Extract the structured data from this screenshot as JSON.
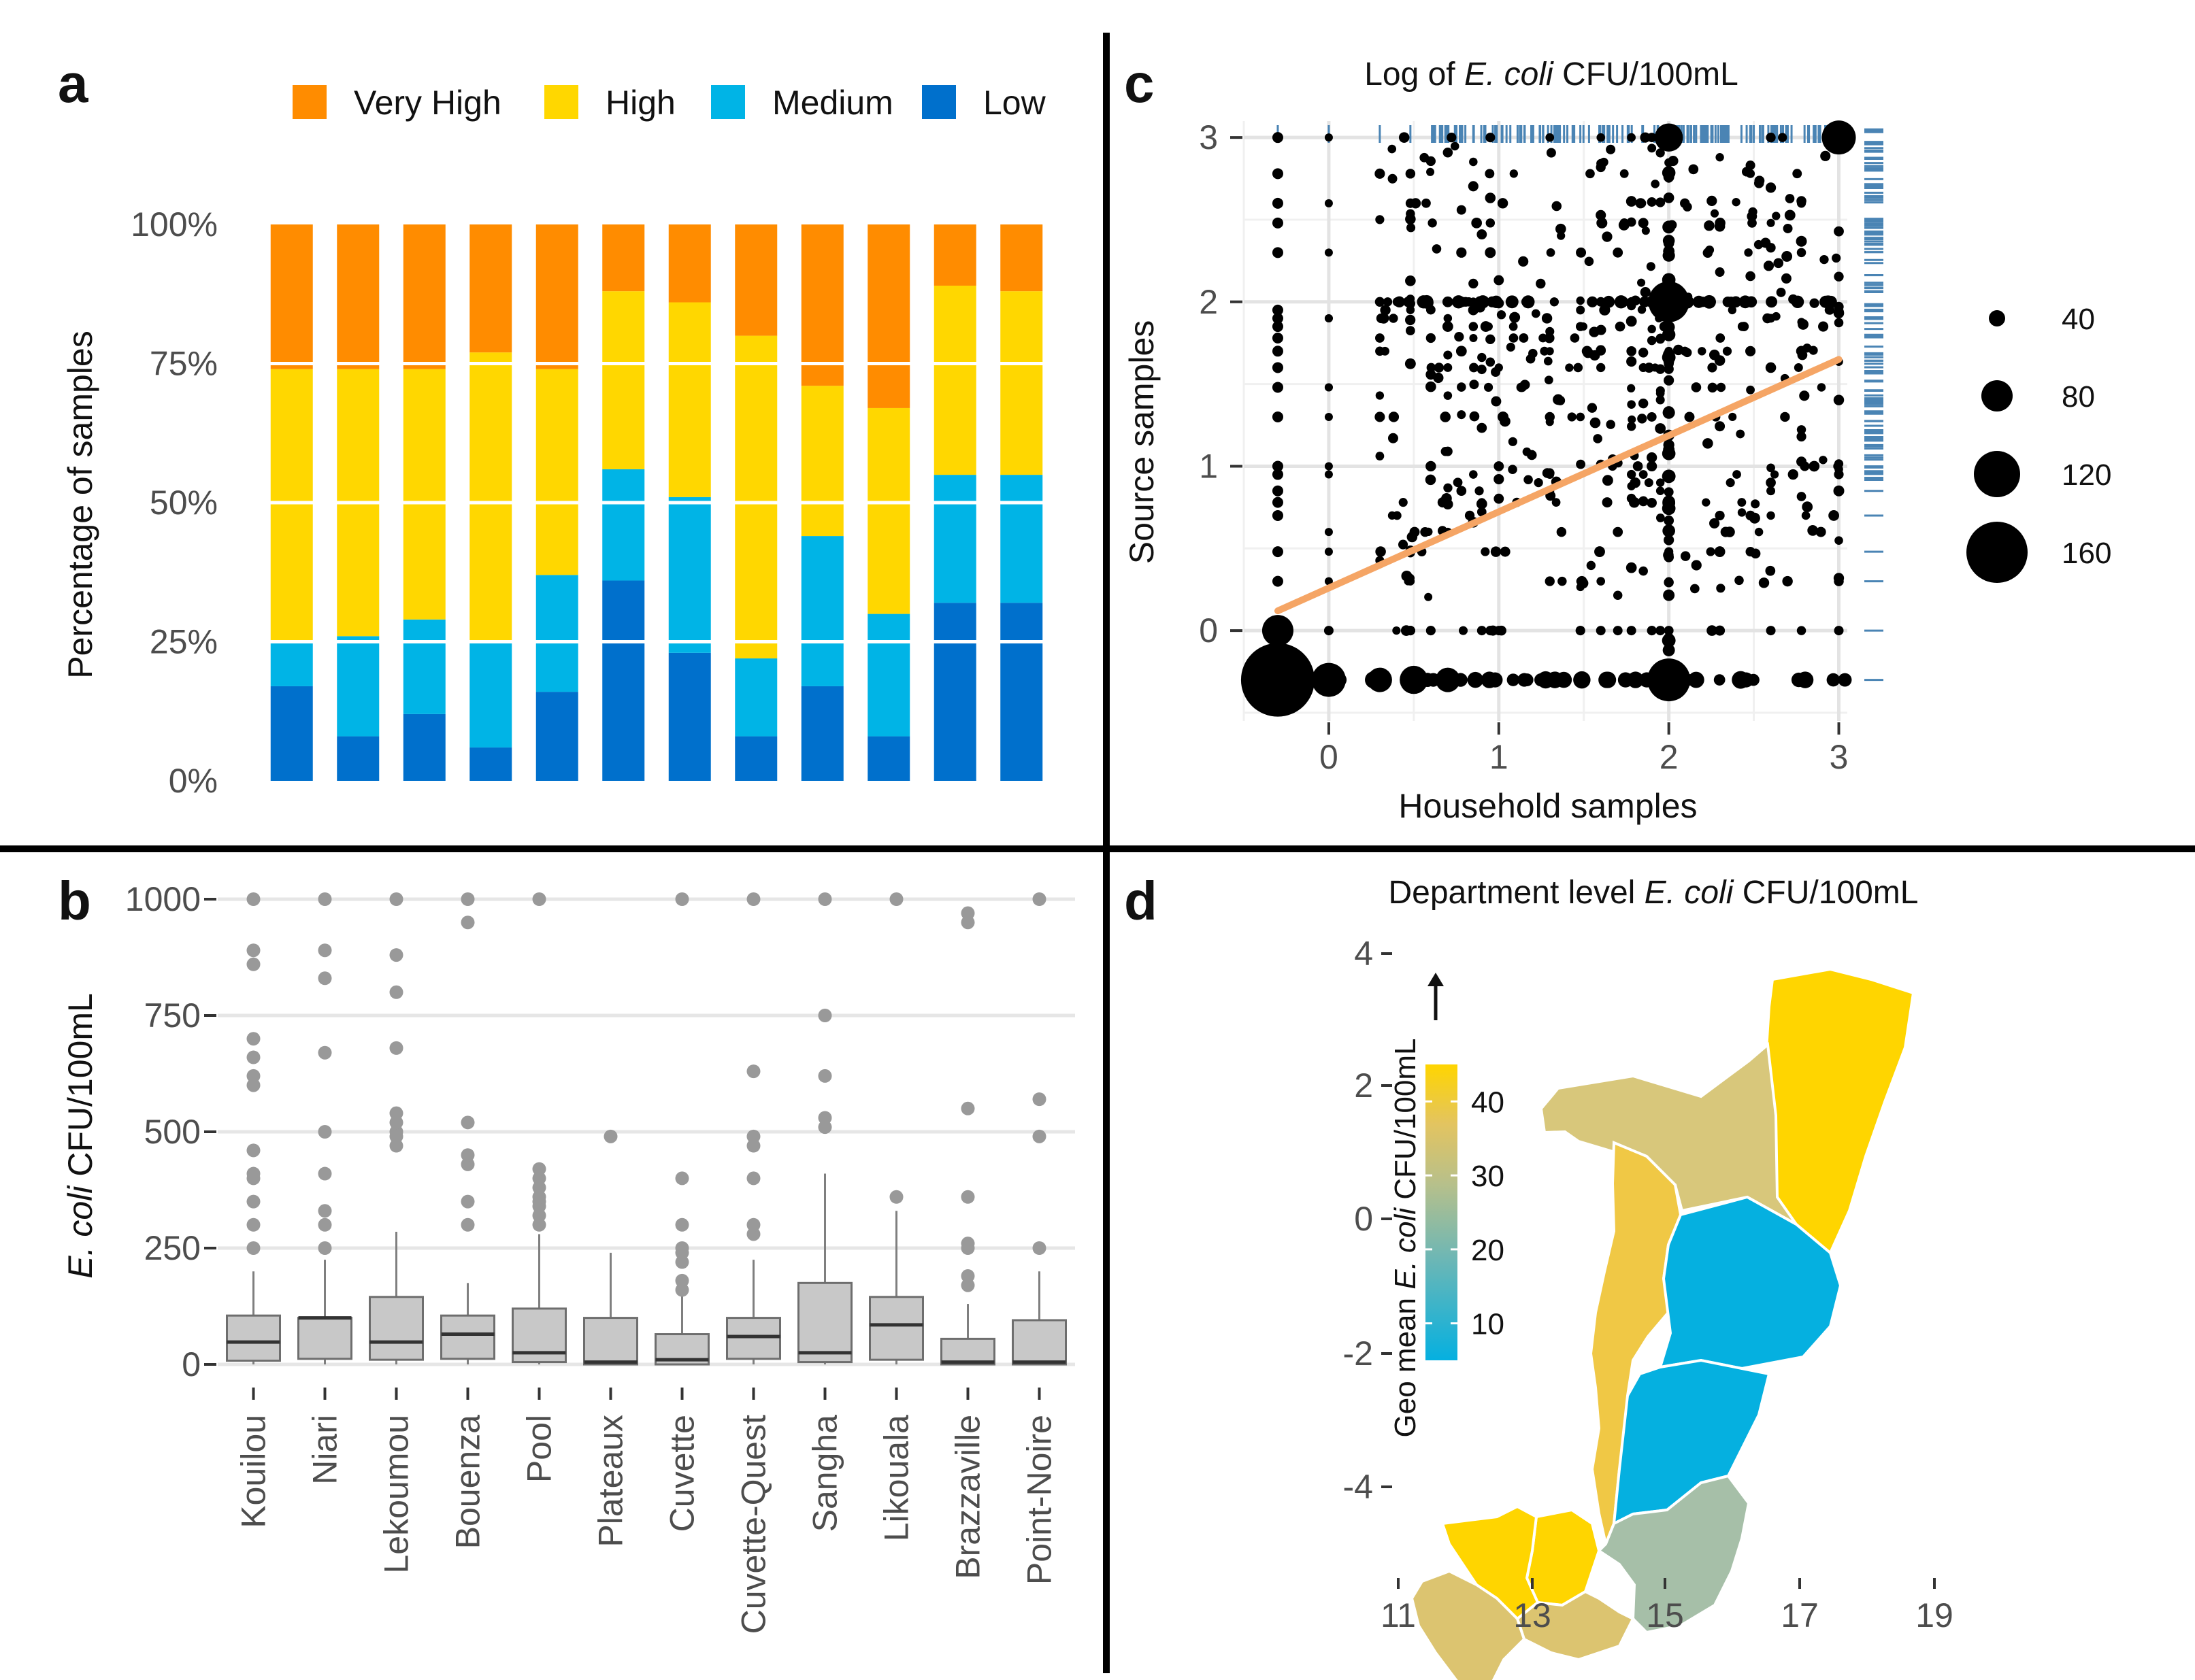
{
  "colors": {
    "very_high": "#FF8C00",
    "high": "#FFD700",
    "medium": "#00B4E6",
    "low": "#0070CC",
    "gray_box": "#C8C8C8",
    "outlier": "#999999",
    "fit_line": "#F5A565",
    "rug": "#4A84B4"
  },
  "panels": {
    "a": {
      "letter": "a"
    },
    "b": {
      "letter": "b"
    },
    "c": {
      "letter": "c"
    },
    "d": {
      "letter": "d"
    }
  },
  "chart_data": [
    {
      "panel": "a",
      "type": "bar",
      "stacked": true,
      "ylabel": "Percentage of samples",
      "yticks": [
        "0%",
        "25%",
        "50%",
        "75%",
        "100%"
      ],
      "ylim": [
        0,
        100
      ],
      "legend": [
        "Very High",
        "High",
        "Medium",
        "Low"
      ],
      "legend_position": "top",
      "categories": [
        "Kouilou",
        "Niari",
        "Lekoumou",
        "Bouenza",
        "Pool",
        "Plateaux",
        "Cuvette",
        "Cuvette-Quest",
        "Sangha",
        "Likouala",
        "Brazzaville",
        "Point-Noire"
      ],
      "series": [
        {
          "name": "Low",
          "values": [
            17,
            8,
            12,
            6,
            16,
            36,
            23,
            8,
            17,
            8,
            32,
            32
          ]
        },
        {
          "name": "Medium",
          "values": [
            8,
            18,
            17,
            19,
            21,
            20,
            28,
            14,
            27,
            22,
            23,
            23
          ]
        },
        {
          "name": "High",
          "values": [
            49,
            48,
            45,
            52,
            37,
            32,
            35,
            58,
            27,
            37,
            34,
            33
          ]
        },
        {
          "name": "Very High",
          "values": [
            26,
            26,
            26,
            23,
            26,
            12,
            14,
            20,
            29,
            33,
            11,
            12
          ]
        }
      ]
    },
    {
      "panel": "b",
      "type": "box",
      "ylabel_italic": "E. coli",
      "ylabel_rest": " CFU/100mL",
      "yticks": [
        "0",
        "250",
        "500",
        "750",
        "1000"
      ],
      "ylim": [
        0,
        1000
      ],
      "categories": [
        "Kouilou",
        "Niari",
        "Lekoumou",
        "Bouenza",
        "Pool",
        "Plateaux",
        "Cuvette",
        "Cuvette-Quest",
        "Sangha",
        "Likouala",
        "Brazzaville",
        "Point-Noire"
      ],
      "boxes": [
        {
          "q1": 8,
          "median": 48,
          "q3": 105,
          "whisker_low": 0,
          "whisker_high": 200,
          "outliers": [
            250,
            300,
            350,
            400,
            410,
            460,
            600,
            620,
            660,
            700,
            860,
            890,
            1000
          ]
        },
        {
          "q1": 12,
          "median": 100,
          "q3": 100,
          "whisker_low": 0,
          "whisker_high": 225,
          "outliers": [
            250,
            300,
            330,
            410,
            500,
            670,
            830,
            890,
            1000
          ]
        },
        {
          "q1": 10,
          "median": 48,
          "q3": 145,
          "whisker_low": 0,
          "whisker_high": 285,
          "outliers": [
            470,
            490,
            500,
            520,
            540,
            680,
            800,
            880,
            1000
          ]
        },
        {
          "q1": 12,
          "median": 65,
          "q3": 105,
          "whisker_low": 0,
          "whisker_high": 175,
          "outliers": [
            300,
            350,
            430,
            450,
            520,
            950,
            1000
          ]
        },
        {
          "q1": 5,
          "median": 25,
          "q3": 120,
          "whisker_low": 0,
          "whisker_high": 280,
          "outliers": [
            300,
            320,
            340,
            350,
            360,
            380,
            400,
            420,
            1000
          ]
        },
        {
          "q1": 0,
          "median": 5,
          "q3": 100,
          "whisker_low": 0,
          "whisker_high": 240,
          "outliers": [
            490
          ]
        },
        {
          "q1": 0,
          "median": 10,
          "q3": 65,
          "whisker_low": 0,
          "whisker_high": 150,
          "outliers": [
            160,
            180,
            220,
            240,
            250,
            300,
            400,
            1000
          ]
        },
        {
          "q1": 12,
          "median": 60,
          "q3": 100,
          "whisker_low": 0,
          "whisker_high": 225,
          "outliers": [
            280,
            300,
            400,
            470,
            490,
            630,
            1000
          ]
        },
        {
          "q1": 5,
          "median": 25,
          "q3": 175,
          "whisker_low": 0,
          "whisker_high": 410,
          "outliers": [
            510,
            530,
            620,
            750,
            1000
          ]
        },
        {
          "q1": 10,
          "median": 85,
          "q3": 145,
          "whisker_low": 0,
          "whisker_high": 330,
          "outliers": [
            360,
            1000
          ]
        },
        {
          "q1": 0,
          "median": 5,
          "q3": 55,
          "whisker_low": 0,
          "whisker_high": 130,
          "outliers": [
            170,
            190,
            250,
            260,
            360,
            550,
            950,
            970
          ]
        },
        {
          "q1": 0,
          "median": 5,
          "q3": 95,
          "whisker_low": 0,
          "whisker_high": 200,
          "outliers": [
            250,
            490,
            570,
            1000
          ]
        }
      ]
    },
    {
      "panel": "c",
      "type": "scatter",
      "title_pre": "Log of ",
      "title_ital": "E. coli",
      "title_post": " CFU/100mL",
      "xlabel": "Household samples",
      "ylabel": "Source samples",
      "xticks": [
        "0",
        "1",
        "2",
        "3"
      ],
      "yticks": [
        "0",
        "1",
        "2",
        "3"
      ],
      "xlim": [
        -0.5,
        3.05
      ],
      "ylim": [
        -0.55,
        3.1
      ],
      "size_legend": [
        "40",
        "80",
        "120",
        "160"
      ],
      "fit_line": {
        "x0": -0.3,
        "y0": 0.12,
        "x1": 3.0,
        "y1": 1.65
      },
      "big_points": [
        {
          "x": -0.3,
          "y": -0.3,
          "n": 160
        },
        {
          "x": 0,
          "y": -0.3,
          "n": 25
        },
        {
          "x": 2,
          "y": -0.3,
          "n": 45
        },
        {
          "x": 2,
          "y": 2,
          "n": 40
        },
        {
          "x": 3,
          "y": 3,
          "n": 25
        },
        {
          "x": -0.3,
          "y": 0,
          "n": 20
        },
        {
          "x": 2,
          "y": 3,
          "n": 15
        },
        {
          "x": 0.5,
          "y": -0.3,
          "n": 15
        },
        {
          "x": 0.3,
          "y": -0.3,
          "n": 10
        },
        {
          "x": 0.7,
          "y": -0.3,
          "n": 10
        }
      ]
    },
    {
      "panel": "d",
      "type": "choropleth",
      "title_pre": "Department level  ",
      "title_ital": "E. coli",
      "title_post": " CFU/100mL",
      "xticks": [
        "11",
        "13",
        "15",
        "17",
        "19"
      ],
      "yticks": [
        "4",
        "2",
        "0",
        "-2",
        "-4"
      ],
      "colorbar_title_pre": "Geo mean ",
      "colorbar_title_ital": "E. coli",
      "colorbar_title_post": " CFU/100mL",
      "colorbar_ticks": [
        "10",
        "20",
        "30",
        "40"
      ],
      "colorbar_range": [
        5,
        45
      ]
    }
  ]
}
